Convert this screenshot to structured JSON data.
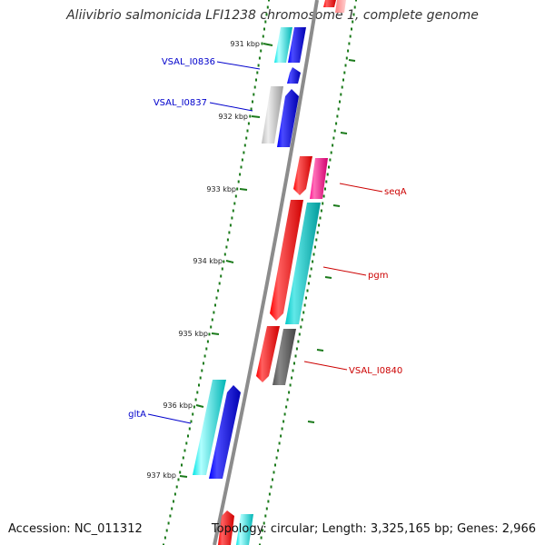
{
  "title": "Aliivibrio salmonicida LFI1238 chromosome 1, complete genome",
  "accession": "Accession: NC_011312",
  "topology": "Topology: circular; Length: 3,325,165 bp; Genes: 2,966",
  "colors": {
    "backbone": "#8c8c8c",
    "dots": "#1a7a1a",
    "label_blue": "#0000cc",
    "label_red": "#cc0000",
    "red": "#ff0000",
    "blue": "#0000ff",
    "cyan": "#00e5e5",
    "teal": "#00c4c4",
    "magenta": "#ff1493",
    "gray": "#bdbdbd",
    "darkgray": "#666666"
  },
  "ticks": [
    {
      "label": "931 kbp"
    },
    {
      "label": "932 kbp"
    },
    {
      "label": "933 kbp"
    },
    {
      "label": "934 kbp"
    },
    {
      "label": "935 kbp"
    },
    {
      "label": "936 kbp"
    },
    {
      "label": "937 kbp"
    }
  ],
  "gene_labels": [
    {
      "name": "VSAL_I0836",
      "color": "blue"
    },
    {
      "name": "VSAL_I0837",
      "color": "blue"
    },
    {
      "name": "seqA",
      "color": "red"
    },
    {
      "name": "pgm",
      "color": "red"
    },
    {
      "name": "VSAL_I0840",
      "color": "red"
    },
    {
      "name": "gltA",
      "color": "blue"
    }
  ]
}
